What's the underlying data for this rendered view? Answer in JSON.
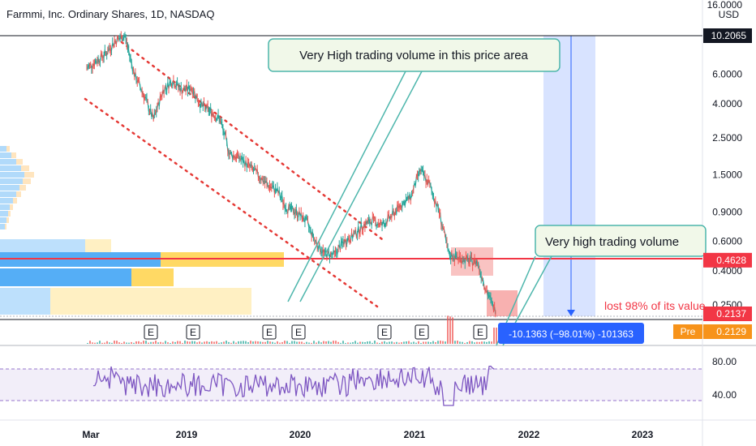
{
  "header": {
    "title": "Farmmi, Inc. Ordinary Shares, 1D, NASDAQ",
    "currency": "USD",
    "top_scale_value": "16.0000"
  },
  "price_axis": {
    "scale": "log",
    "range": [
      0.2059,
      16.0
    ],
    "ticks": [
      "6.0000",
      "4.0000",
      "2.5000",
      "1.5000",
      "0.9000",
      "0.6000",
      "0.4000",
      "0.2500"
    ],
    "tick_values": [
      6.0,
      4.0,
      2.5,
      1.5,
      0.9,
      0.6,
      0.4,
      0.25
    ],
    "badges": [
      {
        "text": "10.2065",
        "value": 10.2065,
        "color": "#131722"
      },
      {
        "text": "0.4628",
        "value": 0.4628,
        "color": "#f23645"
      },
      {
        "text": "0.2137",
        "value": 0.2137,
        "color": "#f23645"
      },
      {
        "text": "0.2129",
        "value": 0.2129,
        "color": "#f7931a"
      }
    ],
    "pre_label": "Pre"
  },
  "time_axis": {
    "labels": [
      "Mar",
      "2019",
      "2020",
      "2021",
      "2022",
      "2023"
    ]
  },
  "rsi": {
    "ticks": [
      "80.00",
      "40.00"
    ],
    "upper_band": 70,
    "lower_band": 30
  },
  "events": [
    "E",
    "E",
    "E",
    "E",
    "E",
    "E",
    "E"
  ],
  "annotations": {
    "callout1": "Very High trading volume in this price area",
    "callout2": "Very high trading volume",
    "lost_text": "lost 98% of its value",
    "measure": "-10.1363 (−98.01%) -101363"
  },
  "colors": {
    "up": "#26a69a",
    "down": "#ef5350",
    "resistance": "#f23645",
    "channel": "#e53935",
    "rsi_line": "#7e57c2",
    "rsi_band": "#ede7f6",
    "callout_border": "#4db6ac",
    "callout_fill": "#f1f8e9",
    "measure_fill": "#2962ff"
  },
  "chart_data": {
    "type": "line",
    "title": "Farmmi, Inc. Ordinary Shares, 1D, NASDAQ",
    "yscale": "log",
    "x": [
      "2018-03",
      "2018-04",
      "2018-05",
      "2018-06",
      "2018-07",
      "2018-08",
      "2018-09",
      "2018-10",
      "2018-11",
      "2018-12",
      "2019-01",
      "2019-02",
      "2019-03",
      "2019-04",
      "2019-05",
      "2019-06",
      "2019-07",
      "2019-08",
      "2019-09",
      "2019-10",
      "2019-11",
      "2019-12",
      "2020-01",
      "2020-02",
      "2020-03",
      "2020-04",
      "2020-05",
      "2020-06",
      "2020-07",
      "2020-08",
      "2020-09",
      "2020-10",
      "2020-11",
      "2020-12",
      "2021-01",
      "2021-02",
      "2021-03",
      "2021-04",
      "2021-05",
      "2021-06",
      "2021-07",
      "2021-08",
      "2021-09",
      "2021-10"
    ],
    "series": [
      {
        "values": [
          6.5,
          7.2,
          8.0,
          9.5,
          10.2,
          6.0,
          4.5,
          3.2,
          4.8,
          5.5,
          4.8,
          5.0,
          3.9,
          3.6,
          3.2,
          2.0,
          1.9,
          1.7,
          1.5,
          1.3,
          1.2,
          0.95,
          0.9,
          0.8,
          0.6,
          0.5,
          0.5,
          0.6,
          0.65,
          0.75,
          0.8,
          0.75,
          0.85,
          1.0,
          1.1,
          1.6,
          1.3,
          0.9,
          0.5,
          0.48,
          0.46,
          0.45,
          0.3,
          0.22
        ]
      }
    ],
    "ylim": [
      0.2059,
      16.0
    ],
    "grid": false
  }
}
